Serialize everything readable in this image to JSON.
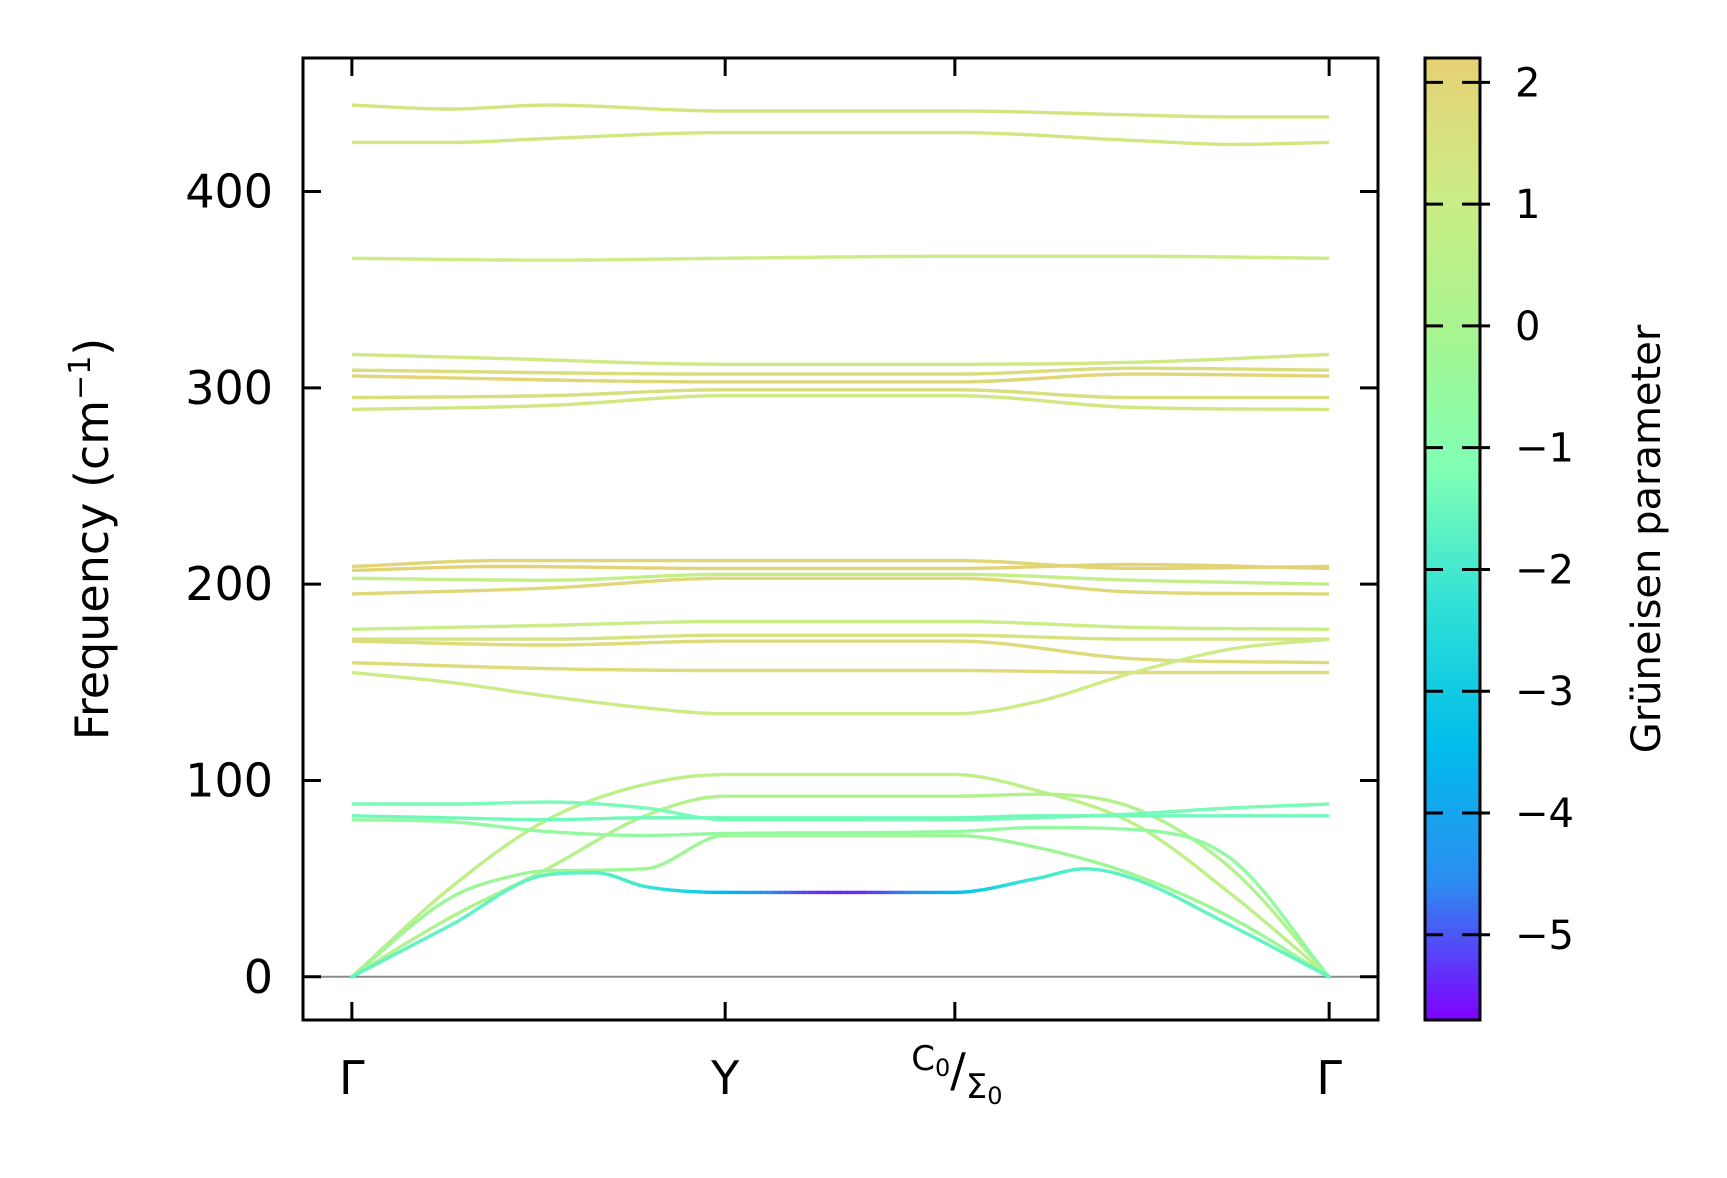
{
  "chart_data": {
    "type": "line",
    "title": "",
    "ylabel": "Frequency (cm",
    "ylabel_sup": "−1",
    "ylabel_close": ")",
    "ylim": [
      -22,
      468
    ],
    "yticks": [
      0,
      100,
      200,
      300,
      400
    ],
    "ytick_labels": [
      "0",
      "100",
      "200",
      "300",
      "400"
    ],
    "xlim": [
      -0.05,
      1.05
    ],
    "x_points": [
      {
        "pos": 0.0,
        "main": "Γ",
        "sub": "",
        "part2": "",
        "part2_sub": ""
      },
      {
        "pos": 0.382,
        "main": "Y",
        "sub": "",
        "part2": "",
        "part2_sub": ""
      },
      {
        "pos": 0.617,
        "main": "C",
        "sub": "0",
        "part2": "Σ",
        "part2_sub": "0"
      },
      {
        "pos": 1.0,
        "main": "Γ",
        "sub": "",
        "part2": "",
        "part2_sub": ""
      }
    ],
    "separator": "/",
    "zero_line": 0,
    "colorbar": {
      "label": "Grüneisen parameter",
      "range": [
        -5.7,
        2.2
      ],
      "ticks": [
        2,
        1,
        0,
        -1,
        -2,
        -3,
        -4,
        -5
      ],
      "tick_labels": [
        "2",
        "1",
        "0",
        "−1",
        "−2",
        "−3",
        "−4",
        "−5"
      ],
      "stops": [
        "#7f00ff",
        "#2c8cf0",
        "#00bdeb",
        "#2ee0d7",
        "#80ffb4",
        "#a6f58f",
        "#ccec86",
        "#e6d174"
      ]
    },
    "series": [
      {
        "name": "band-01",
        "gamma": 1.4,
        "x": [
          0,
          0.1,
          0.2,
          0.382,
          0.617,
          0.8,
          0.9,
          1.0
        ],
        "y": [
          444,
          442,
          444,
          441,
          441,
          439,
          438,
          438
        ]
      },
      {
        "name": "band-02",
        "gamma": 1.3,
        "x": [
          0,
          0.1,
          0.2,
          0.382,
          0.617,
          0.8,
          0.9,
          1.0
        ],
        "y": [
          425,
          425,
          427,
          430,
          430,
          426,
          424,
          425
        ]
      },
      {
        "name": "band-03",
        "gamma": 1.1,
        "x": [
          0,
          0.2,
          0.382,
          0.617,
          0.8,
          1.0
        ],
        "y": [
          366,
          365,
          366,
          367,
          367,
          366
        ]
      },
      {
        "name": "band-04",
        "gamma": 1.2,
        "x": [
          0,
          0.15,
          0.382,
          0.617,
          0.8,
          1.0
        ],
        "y": [
          317,
          315,
          312,
          312,
          313,
          317
        ]
      },
      {
        "name": "band-05",
        "gamma": 1.7,
        "x": [
          0,
          0.382,
          0.617,
          0.8,
          1.0
        ],
        "y": [
          309,
          307,
          307,
          310,
          309
        ]
      },
      {
        "name": "band-06",
        "gamma": 2.0,
        "x": [
          0,
          0.382,
          0.617,
          0.8,
          1.0
        ],
        "y": [
          306,
          303,
          303,
          307,
          306
        ]
      },
      {
        "name": "band-07",
        "gamma": 1.6,
        "x": [
          0,
          0.2,
          0.382,
          0.617,
          0.8,
          1.0
        ],
        "y": [
          295,
          296,
          299,
          299,
          295,
          295
        ]
      },
      {
        "name": "band-08",
        "gamma": 1.3,
        "x": [
          0,
          0.2,
          0.382,
          0.617,
          0.8,
          1.0
        ],
        "y": [
          289,
          291,
          296,
          296,
          290,
          289
        ]
      },
      {
        "name": "band-09",
        "gamma": 2.0,
        "x": [
          0,
          0.15,
          0.382,
          0.617,
          0.8,
          1.0
        ],
        "y": [
          209,
          212,
          212,
          212,
          208,
          209
        ]
      },
      {
        "name": "band-10",
        "gamma": 2.1,
        "x": [
          0,
          0.15,
          0.382,
          0.617,
          0.8,
          1.0
        ],
        "y": [
          207,
          209,
          208,
          208,
          210,
          208
        ]
      },
      {
        "name": "band-11",
        "gamma": 0.8,
        "x": [
          0,
          0.2,
          0.382,
          0.617,
          0.8,
          1.0
        ],
        "y": [
          203,
          202,
          205,
          205,
          202,
          200
        ]
      },
      {
        "name": "band-12",
        "gamma": 1.9,
        "x": [
          0,
          0.2,
          0.382,
          0.617,
          0.8,
          1.0
        ],
        "y": [
          195,
          198,
          203,
          203,
          196,
          195
        ]
      },
      {
        "name": "band-13",
        "gamma": 1.0,
        "x": [
          0,
          0.2,
          0.382,
          0.617,
          0.8,
          1.0
        ],
        "y": [
          177,
          179,
          181,
          181,
          178,
          177
        ]
      },
      {
        "name": "band-14",
        "gamma": 1.5,
        "x": [
          0,
          0.2,
          0.382,
          0.617,
          0.8,
          1.0
        ],
        "y": [
          172,
          172,
          174,
          174,
          172,
          172
        ]
      },
      {
        "name": "band-15",
        "gamma": 1.8,
        "x": [
          0,
          0.2,
          0.382,
          0.617,
          0.8,
          1.0
        ],
        "y": [
          171,
          169,
          171,
          171,
          162,
          160
        ]
      },
      {
        "name": "band-16",
        "gamma": 1.8,
        "x": [
          0,
          0.2,
          0.382,
          0.617,
          0.8,
          1.0
        ],
        "y": [
          160,
          157,
          156,
          156,
          155,
          155
        ]
      },
      {
        "name": "band-17",
        "gamma": 1.1,
        "x": [
          0,
          0.1,
          0.2,
          0.3,
          0.382,
          0.617,
          0.7,
          0.8,
          0.9,
          1.0
        ],
        "y": [
          155,
          150,
          143,
          137,
          134,
          134,
          140,
          155,
          167,
          172
        ]
      },
      {
        "name": "band-18",
        "gamma": 0.7,
        "x": [
          0,
          0.1,
          0.2,
          0.3,
          0.382,
          0.617,
          0.7,
          0.8,
          0.9,
          1.0
        ],
        "y": [
          0,
          45,
          80,
          98,
          103,
          103,
          95,
          78,
          42,
          0
        ]
      },
      {
        "name": "band-19",
        "gamma": 0.3,
        "x": [
          0,
          0.1,
          0.2,
          0.3,
          0.382,
          0.617,
          0.7,
          0.8,
          0.9,
          1.0
        ],
        "y": [
          0,
          30,
          55,
          82,
          92,
          92,
          93,
          86,
          55,
          0
        ]
      },
      {
        "name": "band-20",
        "gamma": -1.3,
        "x": [
          0,
          0.1,
          0.2,
          0.3,
          0.382,
          0.617,
          0.7,
          0.8,
          0.9,
          1.0
        ],
        "y": [
          88,
          88,
          89,
          86,
          80,
          80,
          81,
          83,
          86,
          88
        ]
      },
      {
        "name": "band-21",
        "gamma": -1.4,
        "x": [
          0,
          0.1,
          0.2,
          0.3,
          0.382,
          0.617,
          0.7,
          0.8,
          0.9,
          1.0
        ],
        "y": [
          82,
          81,
          80,
          81,
          81,
          81,
          82,
          82,
          82,
          82
        ]
      },
      {
        "name": "band-22",
        "gamma": -0.6,
        "x": [
          0,
          0.1,
          0.2,
          0.3,
          0.382,
          0.617,
          0.7,
          0.8,
          0.9,
          1.0
        ],
        "y": [
          80,
          79,
          74,
          72,
          73,
          74,
          76,
          75,
          60,
          0
        ]
      },
      {
        "name": "band-23",
        "gamma": -0.3,
        "x": [
          0,
          0.1,
          0.17,
          0.2,
          0.3,
          0.382,
          0.617,
          0.7,
          0.8,
          0.9,
          1.0
        ],
        "y": [
          0,
          40,
          52,
          54,
          55,
          72,
          72,
          66,
          52,
          30,
          0
        ]
      },
      {
        "name": "band-24",
        "gamma": -1.6,
        "x": [
          0,
          0.1,
          0.2,
          0.25,
          0.3,
          0.382,
          0.617,
          0.7,
          0.75,
          0.8,
          0.9,
          1.0
        ],
        "y": [
          0,
          26,
          52,
          53,
          46,
          43,
          43,
          50,
          55,
          50,
          26,
          0
        ],
        "gamma_dip": -5.4
      }
    ]
  }
}
